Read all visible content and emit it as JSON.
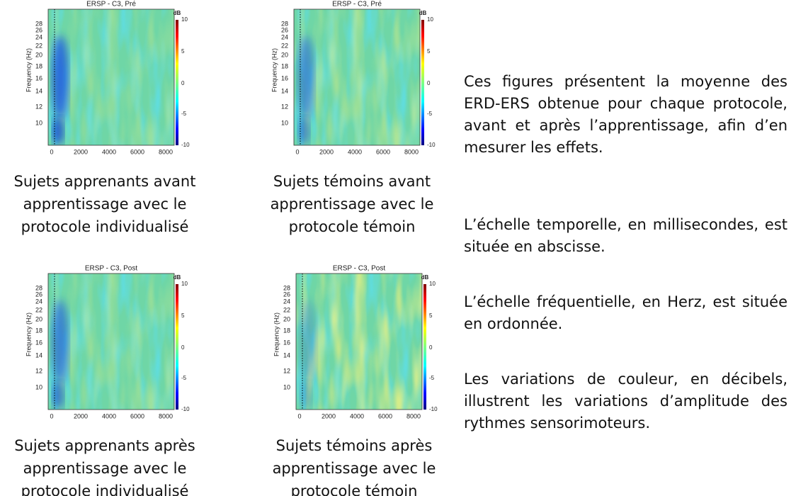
{
  "panels": [
    {
      "title": "ERSP - C3, Pré",
      "ylabel": "Frequency (Hz)",
      "yticks": [
        28,
        26,
        24,
        22,
        20,
        18,
        16,
        14,
        12,
        10
      ],
      "xticks": [
        0,
        2000,
        4000,
        6000,
        8000
      ],
      "colorbar_label": "dB",
      "colorbar_ticks": [
        10,
        5,
        0,
        -5,
        -10
      ],
      "caption": [
        "Sujets apprenants avant",
        "apprentissage avec le",
        "protocole individualisé"
      ]
    },
    {
      "title": "ERSP - C3, Pré",
      "ylabel": "Frequency (Hz)",
      "yticks": [
        28,
        26,
        24,
        22,
        20,
        18,
        16,
        14,
        12,
        10
      ],
      "xticks": [
        0,
        2000,
        4000,
        6000,
        8000
      ],
      "colorbar_label": "dB",
      "colorbar_ticks": [
        10,
        5,
        0,
        -5,
        -10
      ],
      "caption": [
        "Sujets témoins avant",
        "apprentissage avec le",
        "protocole témoin"
      ]
    },
    {
      "title": "ERSP - C3, Post",
      "ylabel": "Frequency (Hz)",
      "yticks": [
        28,
        26,
        24,
        22,
        20,
        18,
        16,
        14,
        12,
        10
      ],
      "xticks": [
        0,
        2000,
        4000,
        6000,
        8000
      ],
      "colorbar_label": "dB",
      "colorbar_ticks": [
        10,
        5,
        0,
        -5,
        -10
      ],
      "caption": [
        "Sujets apprenants après",
        "apprentissage avec le",
        "protocole individualisé"
      ]
    },
    {
      "title": "ERSP - C3, Post",
      "ylabel": "Frequency (Hz)",
      "yticks": [
        28,
        26,
        24,
        22,
        20,
        18,
        16,
        14,
        12,
        10
      ],
      "xticks": [
        0,
        2000,
        4000,
        6000,
        8000
      ],
      "colorbar_label": "dB",
      "colorbar_ticks": [
        10,
        5,
        0,
        -5,
        -10
      ],
      "caption": [
        "Sujets témoins après",
        "apprentissage avec le",
        "protocole témoin"
      ]
    }
  ],
  "paragraphs": [
    "Ces figures présentent la moyenne des ERD-ERS obtenue pour chaque protocole, avant et après l’apprentissage, afin d’en mesurer les effets.",
    "L’échelle temporelle, en millisecondes, est située en abscisse.",
    "L’échelle fréquentielle, en Herz, est située en ordonnée.",
    "Les variations de couleur, en décibels, illustrent les variations d’amplitude des rythmes sensorimoteurs."
  ]
}
